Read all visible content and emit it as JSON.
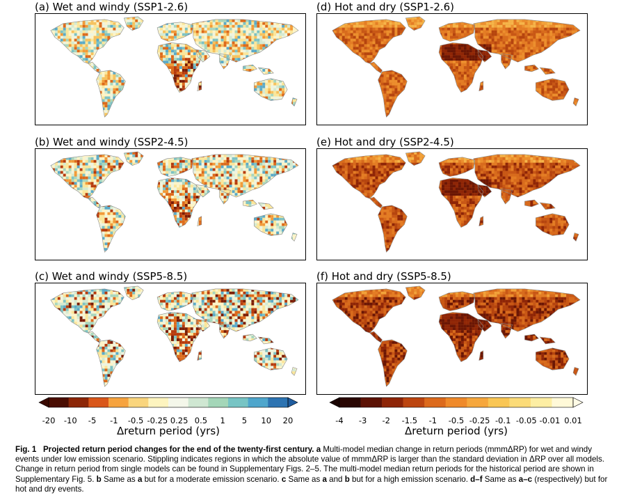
{
  "panels": [
    {
      "id": "a",
      "title": "(a) Wet and windy (SSP1-2.6)",
      "variant": "wet"
    },
    {
      "id": "b",
      "title": "(b) Wet and windy (SSP2-4.5)",
      "variant": "wet"
    },
    {
      "id": "c",
      "title": "(c) Wet and windy (SSP5-8.5)",
      "variant": "wet"
    },
    {
      "id": "d",
      "title": "(d) Hot and dry (SSP1-2.6)",
      "variant": "hot"
    },
    {
      "id": "e",
      "title": "(e) Hot and dry (SSP2-4.5)",
      "variant": "hot"
    },
    {
      "id": "f",
      "title": "(f) Hot and dry (SSP5-8.5)",
      "variant": "hot"
    }
  ],
  "colorbars": {
    "wet": {
      "label": "Δreturn period (yrs)",
      "ticks": [
        "-20",
        "-10",
        "-5",
        "-1",
        "-0.5",
        "-0.25",
        "0.25",
        "0.5",
        "1",
        "5",
        "10",
        "20"
      ],
      "colors": [
        "#4a0d02",
        "#8c2607",
        "#d9571a",
        "#f6a33e",
        "#f9d57d",
        "#fdf4bf",
        "#f4f7ea",
        "#cfe7d2",
        "#a4d6b8",
        "#77c4c4",
        "#4ea6cc",
        "#2d74b2"
      ],
      "extend_low": "#3a0a02",
      "extend_high": "#1f5c9e"
    },
    "hot": {
      "label": "Δreturn period (yrs)",
      "ticks": [
        "-4",
        "-3",
        "-2",
        "-1.5",
        "-1",
        "-0.5",
        "-0.25",
        "-0.1",
        "-0.05",
        "-0.01",
        "0.01"
      ],
      "colors": [
        "#2a0703",
        "#5c1205",
        "#8e2507",
        "#bc4510",
        "#dc6a1c",
        "#ef8a2a",
        "#f6a73c",
        "#f9c654",
        "#fbdb78",
        "#fdeea3",
        "#fff9d8"
      ],
      "extend_low": "#1a0401",
      "extend_high": "#fffbe6"
    }
  },
  "caption": {
    "fig": "Fig. 1",
    "title": "Projected return period changes for the end of the twenty-first century.",
    "a_label": "a",
    "a_text": " Multi-model median change in return periods (mmmΔRP) for wet and windy events under low emission scenario. Stippling indicates regions in which the absolute value of mmmΔRP is larger than the standard deviation in ΔRP over all models. Change in return period from single models can be found in Supplementary Figs. 2–5. The multi-model median return periods for the historical period are shown in Supplementary Fig. 5. ",
    "b_label": "b",
    "b_text_1": " Same as ",
    "b_ref": "a",
    "b_text_2": " but for a moderate emission scenario. ",
    "c_label": "c",
    "c_text_1": " Same as ",
    "c_ref_a": "a",
    "c_text_2": " and ",
    "c_ref_b": "b",
    "c_text_3": " but for a high emission scenario. ",
    "df_label": "d–f",
    "df_text_1": " Same as ",
    "df_ref": "a–c",
    "df_text_2": " (respectively) but for hot and dry events."
  }
}
